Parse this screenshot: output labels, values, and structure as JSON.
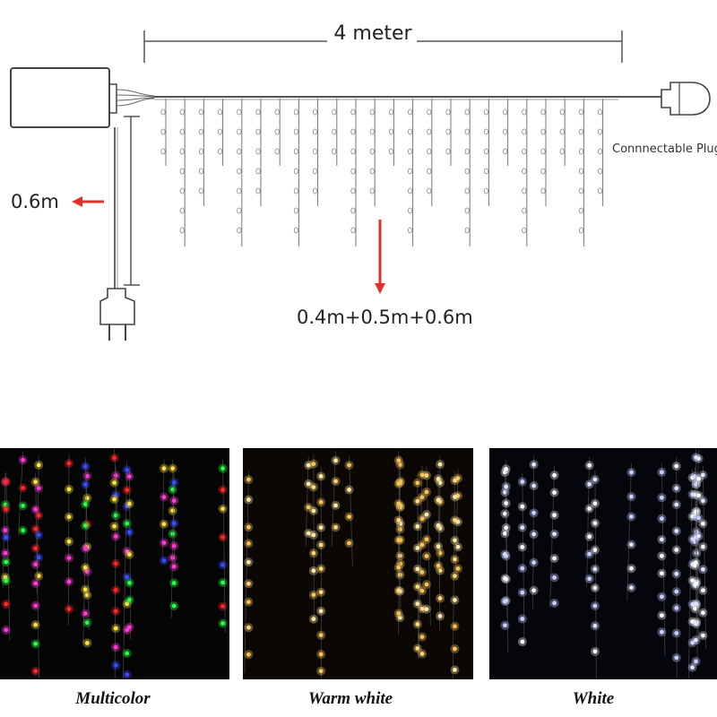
{
  "dimensions": {
    "length": "4 meter",
    "drop": "0.6m",
    "strand_lengths": "0.4m+0.5m+0.6m"
  },
  "labels": {
    "plug": "Connnectable Plug"
  },
  "variants": [
    {
      "name": "Multicolor"
    },
    {
      "name": "Warm white"
    },
    {
      "name": "White"
    }
  ]
}
